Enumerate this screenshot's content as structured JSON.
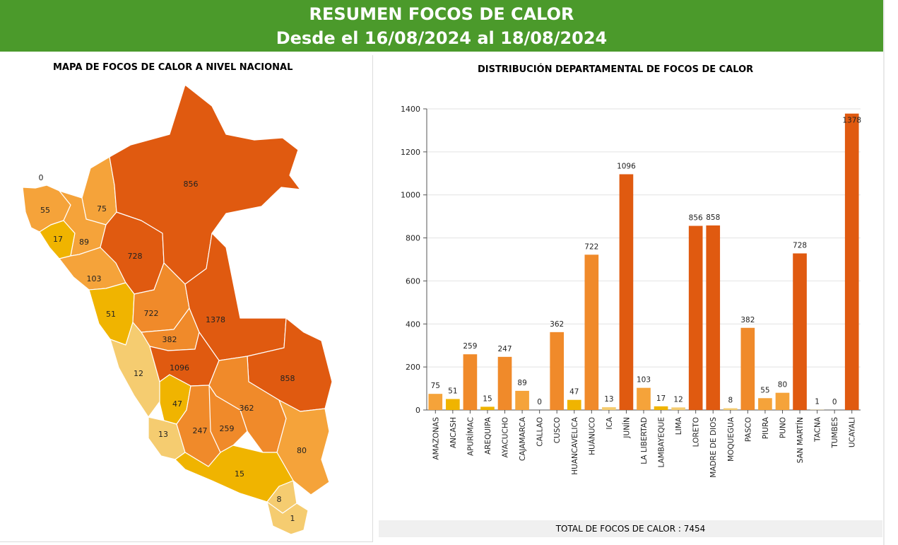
{
  "header": {
    "title": "RESUMEN FOCOS DE CALOR",
    "date_range": "Desde el 16/08/2024 al 18/08/2024"
  },
  "map": {
    "title": "MAPA DE FOCOS DE CALOR A NIVEL NACIONAL",
    "regions": [
      {
        "name": "TUMBES",
        "value": 0,
        "color": "#ffffff"
      },
      {
        "name": "PIURA",
        "value": 55,
        "color": "#f5a33a"
      },
      {
        "name": "LAMBAYEQUE",
        "value": 17,
        "color": "#f0b400"
      },
      {
        "name": "AMAZONAS",
        "value": 75,
        "color": "#f5a33a"
      },
      {
        "name": "CAJAMARCA",
        "value": 89,
        "color": "#f5a33a"
      },
      {
        "name": "LA LIBERTAD",
        "value": 103,
        "color": "#f5a33a"
      },
      {
        "name": "SAN MARTÍN",
        "value": 728,
        "color": "#e05a10"
      },
      {
        "name": "LORETO",
        "value": 856,
        "color": "#e05a10"
      },
      {
        "name": "ANCASH",
        "value": 51,
        "color": "#f0b400"
      },
      {
        "name": "HUÁNUCO",
        "value": 722,
        "color": "#f08a2a"
      },
      {
        "name": "PASCO",
        "value": 382,
        "color": "#f08a2a"
      },
      {
        "name": "UCAYALI",
        "value": 1378,
        "color": "#e05a10"
      },
      {
        "name": "LIMA",
        "value": 12,
        "color": "#f5cc70"
      },
      {
        "name": "JUNÍN",
        "value": 1096,
        "color": "#e05a10"
      },
      {
        "name": "MADRE DE DIOS",
        "value": 858,
        "color": "#e05a10"
      },
      {
        "name": "HUANCAVELICA",
        "value": 47,
        "color": "#f0b400"
      },
      {
        "name": "ICA",
        "value": 13,
        "color": "#f5cc70"
      },
      {
        "name": "AYACUCHO",
        "value": 247,
        "color": "#f08a2a"
      },
      {
        "name": "APURÍMAC",
        "value": 259,
        "color": "#f08a2a"
      },
      {
        "name": "CUSCO",
        "value": 362,
        "color": "#f08a2a"
      },
      {
        "name": "PUNO",
        "value": 80,
        "color": "#f5a33a"
      },
      {
        "name": "AREQUIPA",
        "value": 15,
        "color": "#f0b400"
      },
      {
        "name": "MOQUEGUA",
        "value": 8,
        "color": "#f5cc70"
      },
      {
        "name": "TACNA",
        "value": 1,
        "color": "#f5cc70"
      }
    ]
  },
  "chart_data": {
    "type": "bar",
    "title": "DISTRIBUCIÓN DEPARTAMENTAL DE FOCOS DE CALOR",
    "xlabel": "",
    "ylabel": "",
    "ylim": [
      0,
      1400
    ],
    "yticks": [
      0,
      200,
      400,
      600,
      800,
      1000,
      1200,
      1400
    ],
    "grid": true,
    "categories": [
      "AMAZONAS",
      "ANCASH",
      "APURÍMAC",
      "AREQUIPA",
      "AYACUCHO",
      "CAJAMARCA",
      "CALLAO",
      "CUSCO",
      "HUANCAVELICA",
      "HUÁNUCO",
      "ICA",
      "JUNÍN",
      "LA LIBERTAD",
      "LAMBAYEQUE",
      "LIMA",
      "LORETO",
      "MADRE DE DIOS",
      "MOQUEGUA",
      "PASCO",
      "PIURA",
      "PUNO",
      "SAN MARTÍN",
      "TACNA",
      "TUMBES",
      "UCAYALI"
    ],
    "values": [
      75,
      51,
      259,
      15,
      247,
      89,
      0,
      362,
      47,
      722,
      13,
      1096,
      103,
      17,
      12,
      856,
      858,
      8,
      382,
      55,
      80,
      728,
      1,
      0,
      1378
    ],
    "colors": [
      "#f5a33a",
      "#f0b400",
      "#f08a2a",
      "#f0b400",
      "#f08a2a",
      "#f5a33a",
      "#f5cc70",
      "#f08a2a",
      "#f0b400",
      "#f08a2a",
      "#f5cc70",
      "#e05a10",
      "#f5a33a",
      "#f0b400",
      "#f5cc70",
      "#e05a10",
      "#e05a10",
      "#f5cc70",
      "#f08a2a",
      "#f5a33a",
      "#f5a33a",
      "#e05a10",
      "#f5cc70",
      "#f5cc70",
      "#e05a10"
    ]
  },
  "footer": {
    "total_text": "TOTAL DE FOCOS DE CALOR : 7454"
  }
}
